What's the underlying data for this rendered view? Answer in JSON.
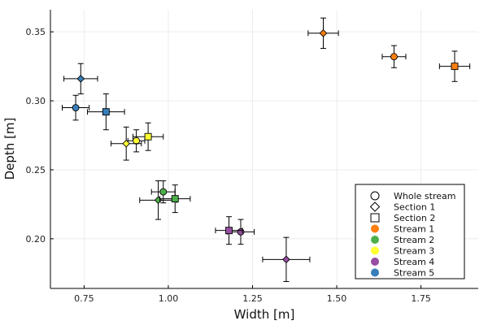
{
  "chart_data": {
    "type": "scatter",
    "xlabel": "Width [m]",
    "ylabel": "Depth [m]",
    "xlim": [
      0.65,
      1.92
    ],
    "ylim": [
      0.164,
      0.366
    ],
    "xticks": [
      0.75,
      1.0,
      1.25,
      1.5,
      1.75
    ],
    "xtick_labels": [
      "0.75",
      "1.00",
      "1.25",
      "1.50",
      "1.75"
    ],
    "yticks": [
      0.2,
      0.25,
      0.3,
      0.35
    ],
    "ytick_labels": [
      "0.20",
      "0.25",
      "0.30",
      "0.35"
    ],
    "grid": true,
    "legend_position": "bottom-right",
    "legend": [
      {
        "label": "Whole stream",
        "kind": "shape",
        "shape": "circle"
      },
      {
        "label": "Section 1",
        "kind": "shape",
        "shape": "diamond"
      },
      {
        "label": "Section 2",
        "kind": "shape",
        "shape": "square"
      },
      {
        "label": "Stream 1",
        "kind": "color",
        "color": "#ff7f0e"
      },
      {
        "label": "Stream 2",
        "kind": "color",
        "color": "#4daf4a"
      },
      {
        "label": "Stream 3",
        "kind": "color",
        "color": "#ffff33"
      },
      {
        "label": "Stream 4",
        "kind": "color",
        "color": "#984ea3"
      },
      {
        "label": "Stream 5",
        "kind": "color",
        "color": "#377eb8"
      }
    ],
    "series": [
      {
        "name": "Stream 1",
        "color": "#ff7f0e",
        "points": [
          {
            "shape": "circle",
            "x": 1.67,
            "y": 0.332,
            "xerr": 0.035,
            "yerr": 0.008
          },
          {
            "shape": "diamond",
            "x": 1.46,
            "y": 0.349,
            "xerr": 0.045,
            "yerr": 0.011
          },
          {
            "shape": "square",
            "x": 1.85,
            "y": 0.325,
            "xerr": 0.045,
            "yerr": 0.011
          }
        ]
      },
      {
        "name": "Stream 2",
        "color": "#4daf4a",
        "points": [
          {
            "shape": "circle",
            "x": 0.985,
            "y": 0.234,
            "xerr": 0.035,
            "yerr": 0.008
          },
          {
            "shape": "diamond",
            "x": 0.97,
            "y": 0.228,
            "xerr": 0.055,
            "yerr": 0.014
          },
          {
            "shape": "square",
            "x": 1.02,
            "y": 0.229,
            "xerr": 0.045,
            "yerr": 0.01
          }
        ]
      },
      {
        "name": "Stream 3",
        "color": "#ffff33",
        "points": [
          {
            "shape": "circle",
            "x": 0.905,
            "y": 0.271,
            "xerr": 0.025,
            "yerr": 0.008
          },
          {
            "shape": "diamond",
            "x": 0.875,
            "y": 0.269,
            "xerr": 0.045,
            "yerr": 0.012
          },
          {
            "shape": "square",
            "x": 0.94,
            "y": 0.274,
            "xerr": 0.045,
            "yerr": 0.01
          }
        ]
      },
      {
        "name": "Stream 4",
        "color": "#984ea3",
        "points": [
          {
            "shape": "circle",
            "x": 1.215,
            "y": 0.205,
            "xerr": 0.04,
            "yerr": 0.009
          },
          {
            "shape": "diamond",
            "x": 1.35,
            "y": 0.185,
            "xerr": 0.07,
            "yerr": 0.016
          },
          {
            "shape": "square",
            "x": 1.18,
            "y": 0.206,
            "xerr": 0.04,
            "yerr": 0.01
          }
        ]
      },
      {
        "name": "Stream 5",
        "color": "#377eb8",
        "points": [
          {
            "shape": "circle",
            "x": 0.725,
            "y": 0.295,
            "xerr": 0.04,
            "yerr": 0.009
          },
          {
            "shape": "diamond",
            "x": 0.74,
            "y": 0.316,
            "xerr": 0.05,
            "yerr": 0.011
          },
          {
            "shape": "square",
            "x": 0.815,
            "y": 0.292,
            "xerr": 0.055,
            "yerr": 0.013
          }
        ]
      }
    ]
  }
}
